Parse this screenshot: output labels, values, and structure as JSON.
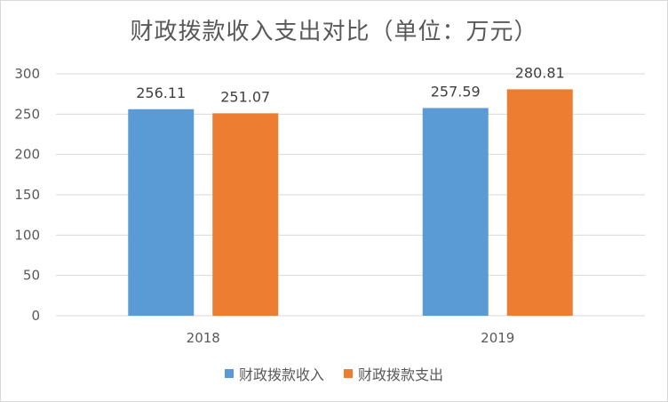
{
  "chart_data": {
    "type": "bar",
    "title": "财政拨款收入支出对比（单位：万元）",
    "categories": [
      "2018",
      "2019"
    ],
    "series": [
      {
        "name": "财政拨款收入",
        "values": [
          256.11,
          257.59
        ],
        "color": "#5b9bd5"
      },
      {
        "name": "财政拨款支出",
        "values": [
          251.07,
          280.81
        ],
        "color": "#ed7d31"
      }
    ],
    "ylim": [
      0,
      300
    ],
    "yticks": [
      0,
      50,
      100,
      150,
      200,
      250,
      300
    ],
    "grid": true,
    "legend_position": "bottom"
  }
}
